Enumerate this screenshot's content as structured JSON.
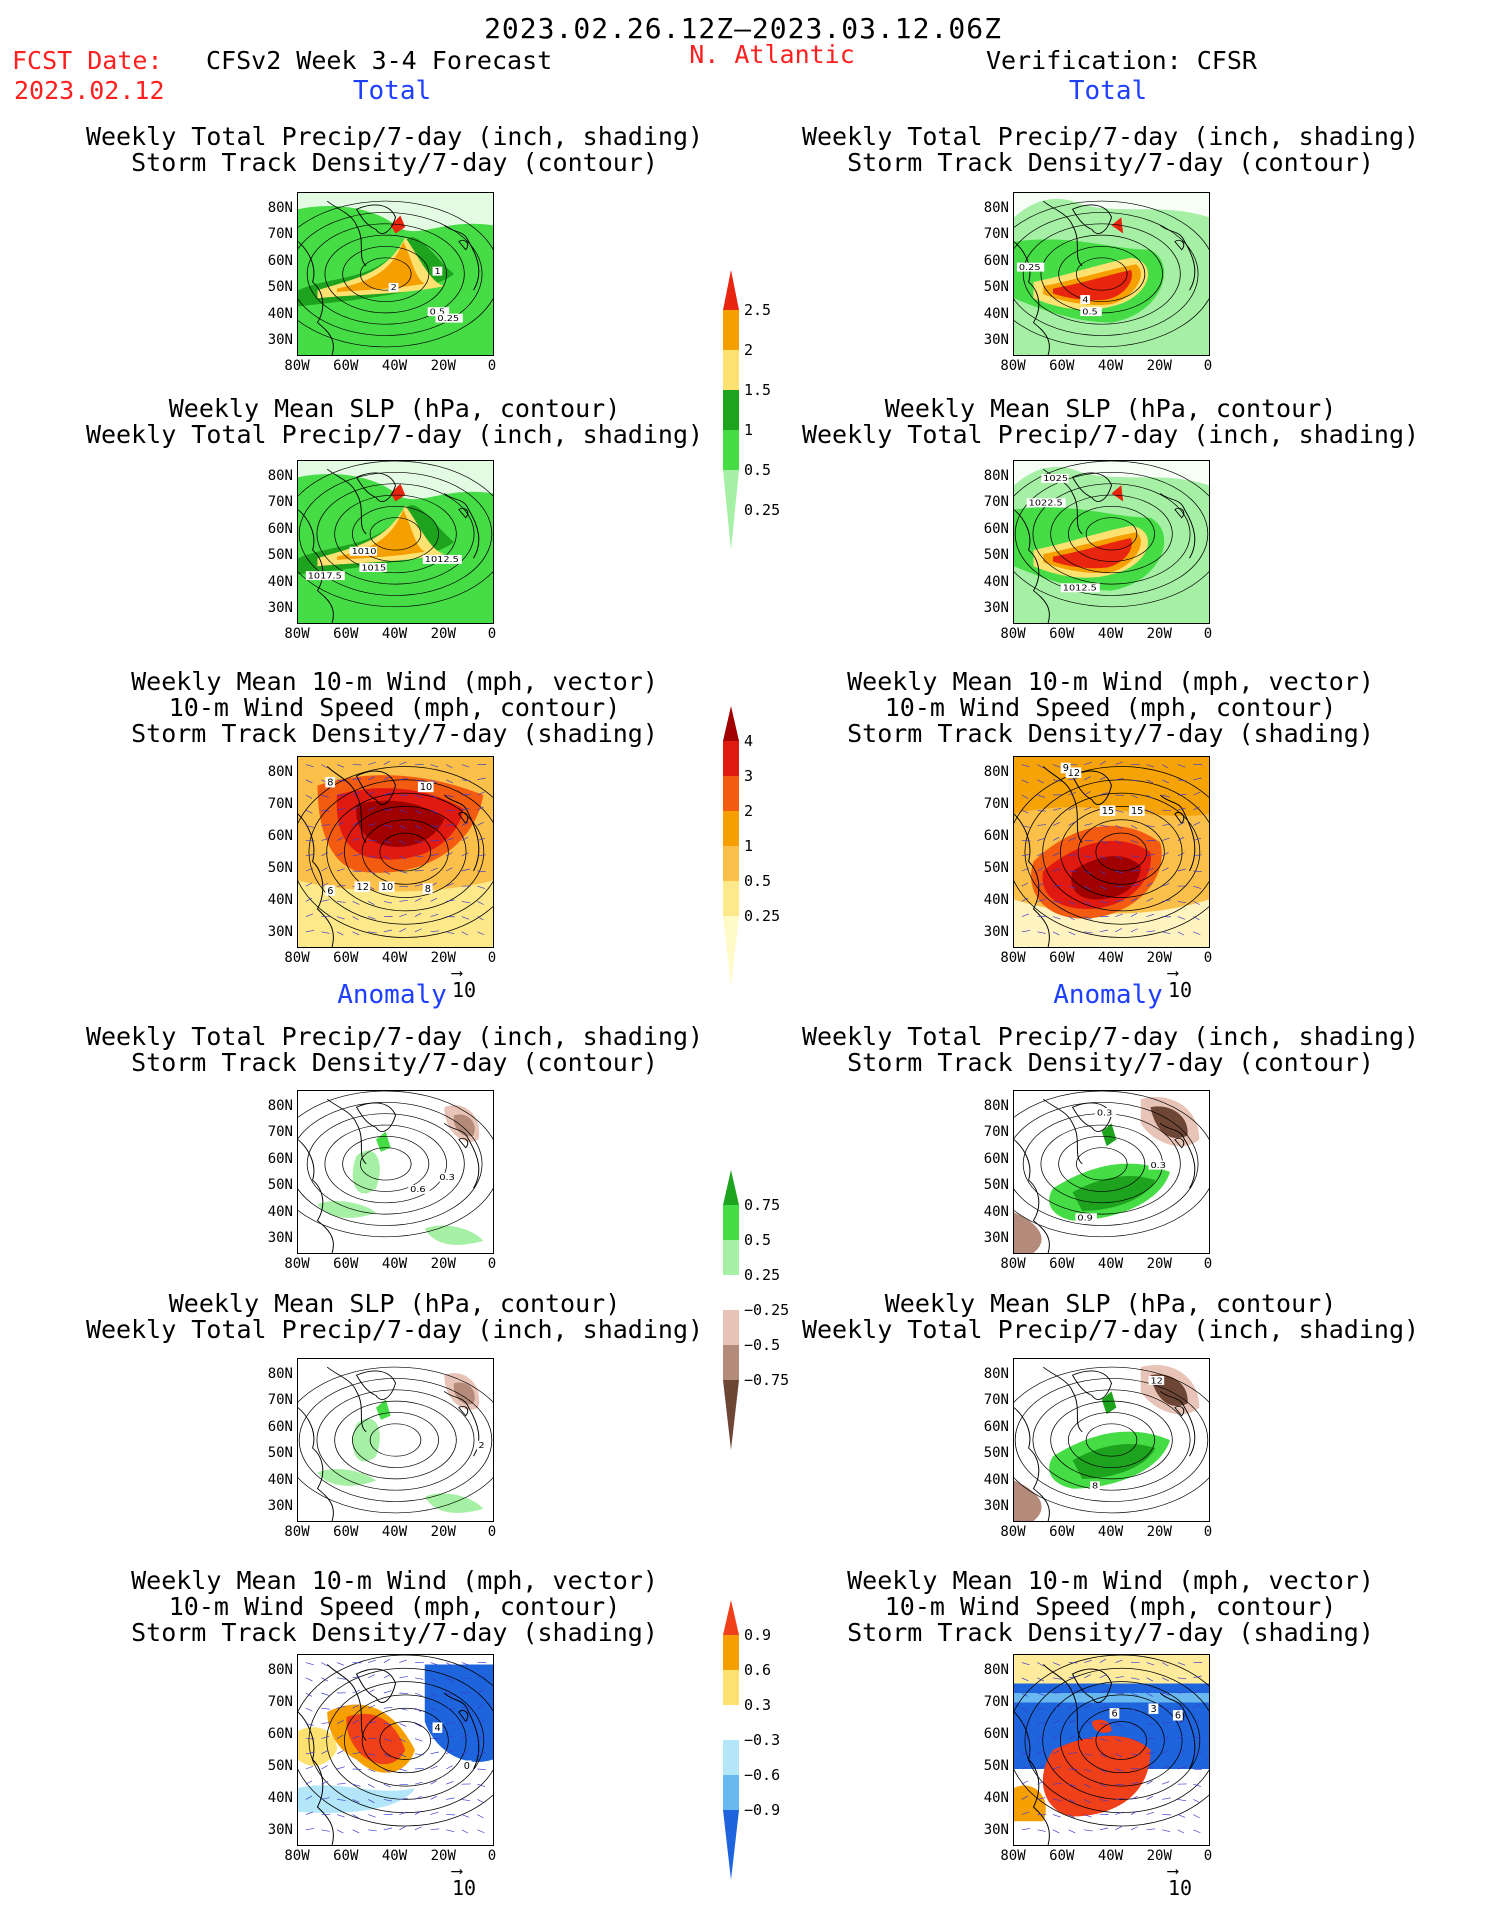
{
  "header": {
    "date_range": "2023.02.26.12Z–2023.03.12.06Z",
    "fcst_label": "FCST Date:",
    "fcst_date": "2023.02.12",
    "model": "CFSv2 Week 3-4 Forecast",
    "region": "N. Atlantic",
    "verification": "Verification: CFSR"
  },
  "sections": {
    "total": "Total",
    "anomaly": "Anomaly"
  },
  "panel_titles": {
    "precip_track": [
      "Weekly Total Precip/7-day (inch, shading)",
      "Storm Track Density/7-day (contour)"
    ],
    "slp_precip": [
      "Weekly Mean SLP (hPa, contour)",
      "Weekly Total Precip/7-day (inch, shading)"
    ],
    "wind_track": [
      "Weekly Mean 10-m Wind (mph, vector)",
      "10-m Wind Speed (mph, contour)",
      "Storm Track Density/7-day (shading)"
    ]
  },
  "axes": {
    "lat_ticks": [
      "80N",
      "70N",
      "60N",
      "50N",
      "40N",
      "30N"
    ],
    "lon_ticks": [
      "80W",
      "60W",
      "40W",
      "20W",
      "0"
    ]
  },
  "vector_ref": "10",
  "colorbars": {
    "precip_total": {
      "labels": [
        "2.5",
        "2",
        "1.5",
        "1",
        "0.5",
        "0.25"
      ],
      "colors": [
        "#e8250f",
        "#f5a000",
        "#fde272",
        "#1ea31e",
        "#46dc46",
        "#a6f0a6"
      ]
    },
    "track_total": {
      "labels": [
        "4",
        "3",
        "2",
        "1",
        "0.5",
        "0.25"
      ],
      "colors": [
        "#a00000",
        "#e01a10",
        "#f35c10",
        "#f5a000",
        "#fbc04a",
        "#fde98a",
        "#fffac8"
      ]
    },
    "precip_anom": {
      "labels": [
        "0.75",
        "0.5",
        "0.25",
        "−0.25",
        "−0.5",
        "−0.75"
      ],
      "colors": [
        "#1ea31e",
        "#46dc46",
        "#a6f0a6",
        "#ffffff",
        "#e8c4b8",
        "#b48a7a",
        "#6e4636"
      ]
    },
    "track_anom": {
      "labels": [
        "0.9",
        "0.6",
        "0.3",
        "−0.3",
        "−0.6",
        "−0.9"
      ],
      "colors": [
        "#f0401a",
        "#f5a000",
        "#fde272",
        "#ffffff",
        "#b4e6fa",
        "#6ab8f0",
        "#1e64dc"
      ]
    }
  },
  "contour_labels": {
    "p1": [
      "1",
      "2",
      "0.5",
      "0.25"
    ],
    "p2": [
      "1010",
      "1015",
      "1012.5",
      "1017.5"
    ],
    "p3": [
      "8",
      "10",
      "12",
      "10",
      "8",
      "6"
    ],
    "p4": [
      "0.6",
      "0.3"
    ],
    "p5": [
      "2"
    ],
    "p6": [
      "4",
      "0"
    ],
    "q1": [
      "0.25",
      "4",
      "0.5"
    ],
    "q2": [
      "1025",
      "1022.5",
      "1012.5"
    ],
    "q3": [
      "12",
      "15",
      "15",
      "9"
    ],
    "q4": [
      "0.3",
      "0.9",
      "0.3"
    ],
    "q5": [
      "12",
      "8"
    ],
    "q6": [
      "3",
      "6",
      "6"
    ]
  }
}
